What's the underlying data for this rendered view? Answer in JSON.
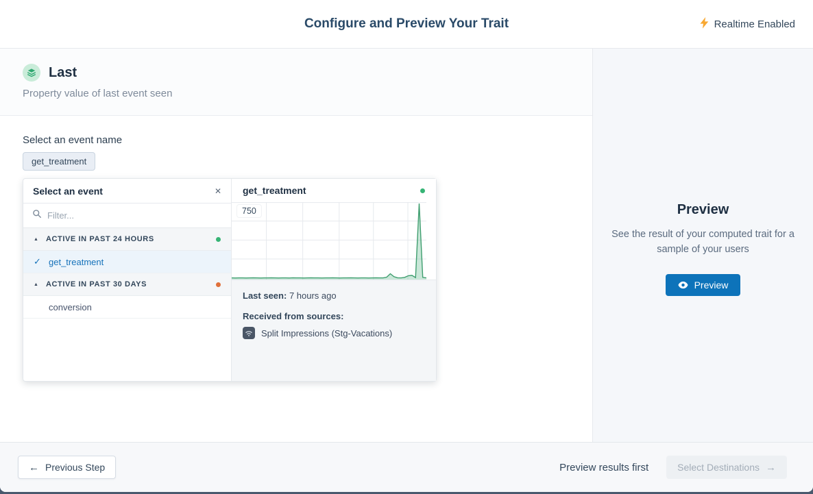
{
  "header": {
    "title": "Configure and Preview Your Trait",
    "realtime_label": "Realtime Enabled"
  },
  "trait": {
    "name": "Last",
    "description": "Property value of last event seen"
  },
  "event_select": {
    "label": "Select an event name",
    "selected_chip": "get_treatment",
    "popover": {
      "title": "Select an event",
      "filter_placeholder": "Filter...",
      "groups": [
        {
          "label": "ACTIVE IN PAST 24 HOURS",
          "dot_color": "#36b475",
          "items": [
            {
              "name": "get_treatment",
              "selected": true
            }
          ]
        },
        {
          "label": "ACTIVE IN PAST 30 DAYS",
          "dot_color": "#e0703a",
          "items": [
            {
              "name": "conversion",
              "selected": false
            }
          ]
        }
      ]
    },
    "detail": {
      "event_name": "get_treatment",
      "status_dot_color": "#36b475",
      "last_seen_label": "Last seen:",
      "last_seen_value": "7 hours ago",
      "sources_label": "Received from sources:",
      "sources": [
        "Split Impressions (Stg-Vacations)"
      ]
    }
  },
  "chart_data": {
    "type": "area",
    "title": "get_treatment event volume",
    "ylabel": "",
    "xlabel": "",
    "ylim": [
      0,
      750
    ],
    "y_tick_labels": [
      "750"
    ],
    "x_labels_visible": false,
    "legend": "none",
    "grid": {
      "on": true,
      "vertical_fractions": [
        0.178,
        0.365,
        0.552,
        0.728,
        0.905
      ],
      "horizontal_fractions": [
        0.005,
        0.245,
        0.49,
        0.735
      ]
    },
    "line_color": "#3f9e6f",
    "fill_color": "rgba(76,175,125,0.30)",
    "values": [
      3,
      2,
      3,
      3,
      2,
      3,
      4,
      3,
      2,
      3,
      3,
      4,
      3,
      2,
      3,
      3,
      2,
      4,
      3,
      3,
      2,
      3,
      4,
      3,
      3,
      2,
      3,
      3,
      4,
      3,
      2,
      3,
      3,
      4,
      3,
      2,
      3,
      3,
      2,
      3,
      4,
      3,
      3,
      10,
      45,
      15,
      4,
      3,
      8,
      25,
      28,
      6,
      750,
      8,
      3
    ]
  },
  "preview_panel": {
    "title": "Preview",
    "description": "See the result of your computed trait for a sample of your users",
    "button_label": "Preview"
  },
  "footer": {
    "previous_label": "Previous Step",
    "hint": "Preview results first",
    "next_label": "Select Destinations"
  },
  "icons": {
    "realtime": "lightning-bolt",
    "trait_badge": "stacked-layers",
    "close": "✕",
    "filter": "magnifier",
    "group_caret": "▲",
    "selected_check": "✓",
    "source": "wifi-signal",
    "preview_button": "eye",
    "previous_arrow": "←",
    "next_arrow": "→"
  },
  "colors": {
    "accent_blue": "#0d73ba",
    "selected_blue": "#1672ba",
    "green_status": "#36b475",
    "orange_status": "#e0703a",
    "bolt_yellow": "#f8a832",
    "chart_green": "#3f9e6f"
  }
}
